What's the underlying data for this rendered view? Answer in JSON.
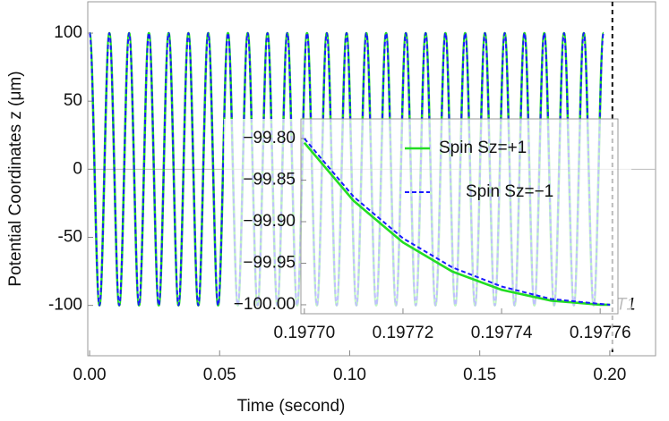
{
  "chart_data": [
    {
      "type": "line",
      "xlabel": "Time (second)",
      "ylabel": "Potential Coordinates z (μm)",
      "x": [
        0,
        0.0038,
        0.0076,
        0.0114,
        0.0152,
        0.019,
        0.0228,
        0.0266,
        0.0304,
        0.0342,
        0.038,
        0.0418,
        0.0456,
        0.0494,
        0.0532,
        0.057,
        0.0608,
        0.0646,
        0.0684,
        0.0722,
        0.076,
        0.0798,
        0.0836,
        0.0874,
        0.0912,
        0.095,
        0.0988,
        0.1026,
        0.1064,
        0.1102,
        0.114,
        0.1178,
        0.1216,
        0.1254,
        0.1292,
        0.133,
        0.1368,
        0.1406,
        0.1444,
        0.1482,
        0.152,
        0.1558,
        0.1596,
        0.1634,
        0.1672,
        0.171,
        0.1748,
        0.1786,
        0.1824,
        0.1862,
        0.19,
        0.1938,
        0.1976
      ],
      "series": [
        {
          "name": "Spin Sz=+1",
          "color": "#22dd22",
          "values": [
            100,
            -100,
            100,
            -100,
            100,
            -100,
            100,
            -100,
            100,
            -100,
            100,
            -100,
            100,
            -100,
            100,
            -100,
            100,
            -100,
            100,
            -100,
            100,
            -100,
            100,
            -100,
            100,
            -100,
            100,
            -100,
            100,
            -100,
            100,
            -100,
            100,
            -100,
            100,
            -100,
            100,
            -100,
            100,
            -100,
            100,
            -100,
            100,
            -100,
            100,
            -100,
            100,
            -100,
            100,
            -100,
            100,
            -100,
            100
          ]
        },
        {
          "name": "Spin Sz=−1",
          "color": "#1a1aff",
          "dashed": true,
          "values": [
            100,
            -100,
            100,
            -100,
            100,
            -100,
            100,
            -100,
            100,
            -100,
            100,
            -100,
            100,
            -100,
            100,
            -100,
            100,
            -100,
            100,
            -100,
            100,
            -100,
            100,
            -100,
            100,
            -100,
            100,
            -100,
            100,
            -100,
            100,
            -100,
            100,
            -100,
            100,
            -100,
            100,
            -100,
            100,
            -100,
            100,
            -100,
            100,
            -100,
            100,
            -100,
            100,
            -100,
            100,
            -100,
            100,
            -100,
            100
          ]
        }
      ],
      "xlim": [
        -0.0007,
        0.2176
      ],
      "ylim": [
        -137,
        123
      ],
      "xticks": [
        {
          "value": 0,
          "label": "0.00"
        },
        {
          "value": 0.05,
          "label": "0.05"
        },
        {
          "value": 0.1,
          "label": "0.10"
        },
        {
          "value": 0.15,
          "label": "0.15"
        },
        {
          "value": 0.2,
          "label": "0.20"
        }
      ],
      "yticks": [
        100,
        50,
        0,
        -50,
        -100
      ],
      "marker": {
        "x": 0.201,
        "label": "T1"
      }
    },
    {
      "type": "line",
      "x": [
        0.1977,
        0.19771,
        0.19772,
        0.19773,
        0.19774,
        0.19775,
        0.19776,
        0.197762
      ],
      "series": [
        {
          "name": "Spin Sz=+1",
          "color": "#22dd22",
          "values": [
            -99.805,
            -99.875,
            -99.925,
            -99.96,
            -99.982,
            -99.995,
            -100.0,
            -100.0
          ]
        },
        {
          "name": "Spin Sz=−1",
          "color": "#1a1aff",
          "dashed": true,
          "values": [
            -99.8,
            -99.87,
            -99.92,
            -99.955,
            -99.978,
            -99.993,
            -99.999,
            -100.0
          ]
        }
      ],
      "xlim": [
        0.1976993,
        0.1977636
      ],
      "ylim": [
        -100.0108,
        -99.7763
      ],
      "xticks": [
        {
          "value": 0.1977,
          "label": "0.19770"
        },
        {
          "value": 0.19772,
          "label": "0.19772"
        },
        {
          "value": 0.19774,
          "label": "0.19774"
        },
        {
          "value": 0.19776,
          "label": "0.19776"
        }
      ],
      "yticks": [
        {
          "value": -99.8,
          "label": "−99.80"
        },
        {
          "value": -99.85,
          "label": "−99.85"
        },
        {
          "value": -99.9,
          "label": "−99.90"
        },
        {
          "value": -99.95,
          "label": "−99.95"
        },
        {
          "value": -100,
          "label": "−100.00"
        }
      ],
      "legend": "top-right"
    }
  ]
}
